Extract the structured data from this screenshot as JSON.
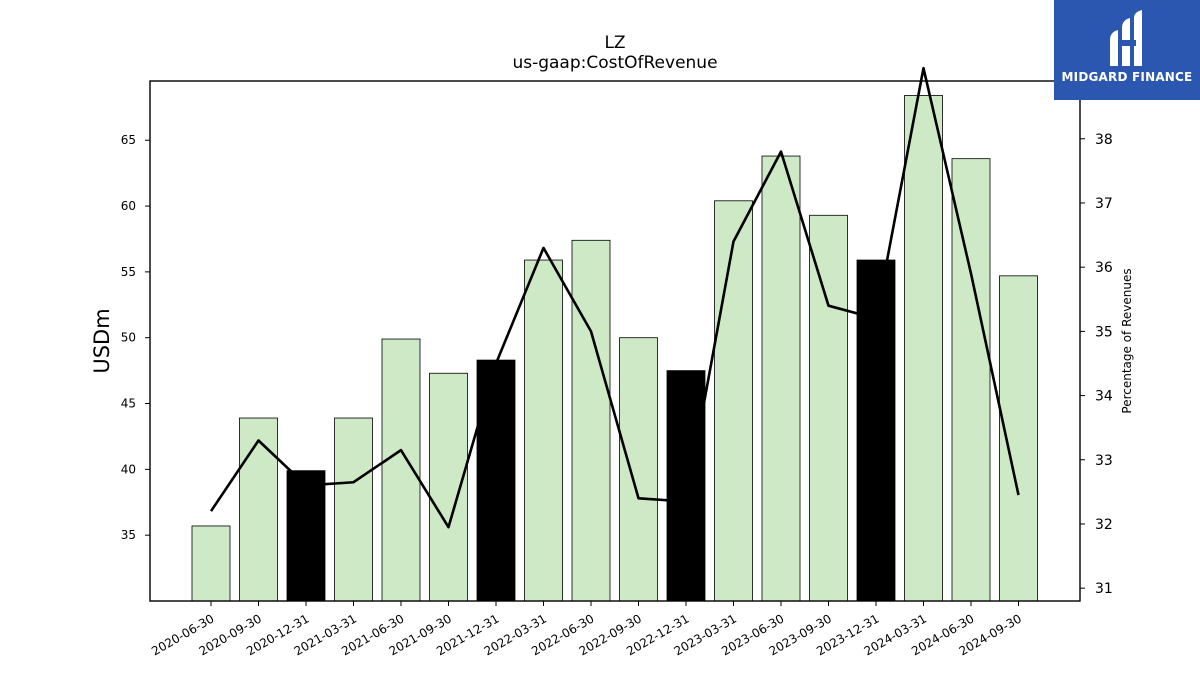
{
  "chart_data": {
    "type": "bar",
    "title": "LZ",
    "subtitle": "us-gaap:CostOfRevenue",
    "ylabel": "USDm",
    "ylabel_right": "Percentage of Revenues",
    "categories": [
      "2020-06-30",
      "2020-09-30",
      "2020-12-31",
      "2021-03-31",
      "2021-06-30",
      "2021-09-30",
      "2021-12-31",
      "2022-03-31",
      "2022-06-30",
      "2022-09-30",
      "2022-12-31",
      "2023-03-31",
      "2023-06-30",
      "2023-09-30",
      "2023-12-31",
      "2024-03-31",
      "2024-06-30",
      "2024-09-30"
    ],
    "series": [
      {
        "values": [
          35.7,
          43.9,
          39.9,
          43.9,
          49.9,
          47.3,
          48.3,
          55.9,
          57.4,
          50.0,
          47.5,
          60.4,
          63.8,
          59.3,
          55.9,
          68.4,
          63.6,
          54.7
        ],
        "highlight": [
          false,
          false,
          true,
          false,
          false,
          false,
          true,
          false,
          false,
          false,
          true,
          false,
          false,
          false,
          true,
          false,
          false,
          false
        ]
      },
      {
        "axis": "right",
        "type": "line",
        "values": [
          32.2,
          33.3,
          32.6,
          32.65,
          33.15,
          31.95,
          34.5,
          36.3,
          35.0,
          32.4,
          32.35,
          36.4,
          37.8,
          35.4,
          35.2,
          39.1,
          35.9,
          32.45
        ]
      }
    ],
    "ylim": [
      30,
      69.5
    ],
    "ylim_right": [
      30.8,
      38.9
    ],
    "yticks": [
      35,
      40,
      45,
      50,
      55,
      60,
      65
    ],
    "yticks_right": [
      31,
      32,
      33,
      34,
      35,
      36,
      37,
      38
    ],
    "colors": {
      "bar": "#cde9c6",
      "highlight": "#000000",
      "line": "#000000"
    },
    "grid": false
  },
  "logo": {
    "text": "MIDGARD FINANCE"
  }
}
